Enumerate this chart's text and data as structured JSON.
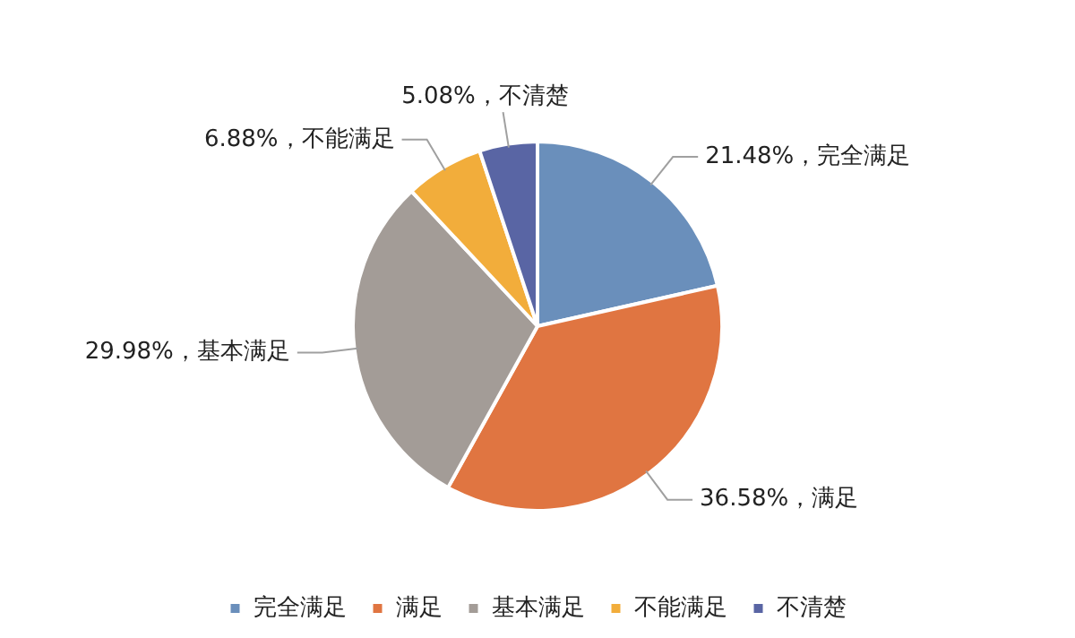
{
  "chart_data": {
    "type": "pie",
    "categories": [
      "完全满足",
      "满足",
      "基本满足",
      "不能满足",
      "不清楚"
    ],
    "values": [
      21.48,
      36.58,
      29.98,
      6.88,
      5.08
    ],
    "colors": [
      "#6a8fbb",
      "#e07541",
      "#a39c97",
      "#f2ad3b",
      "#5965a4"
    ],
    "value_labels": [
      "21.48%，完全满足",
      "36.58%，满足",
      "29.98%，基本满足",
      "6.88%，不能满足",
      "5.08%，不清楚"
    ],
    "legend": "bottom"
  }
}
